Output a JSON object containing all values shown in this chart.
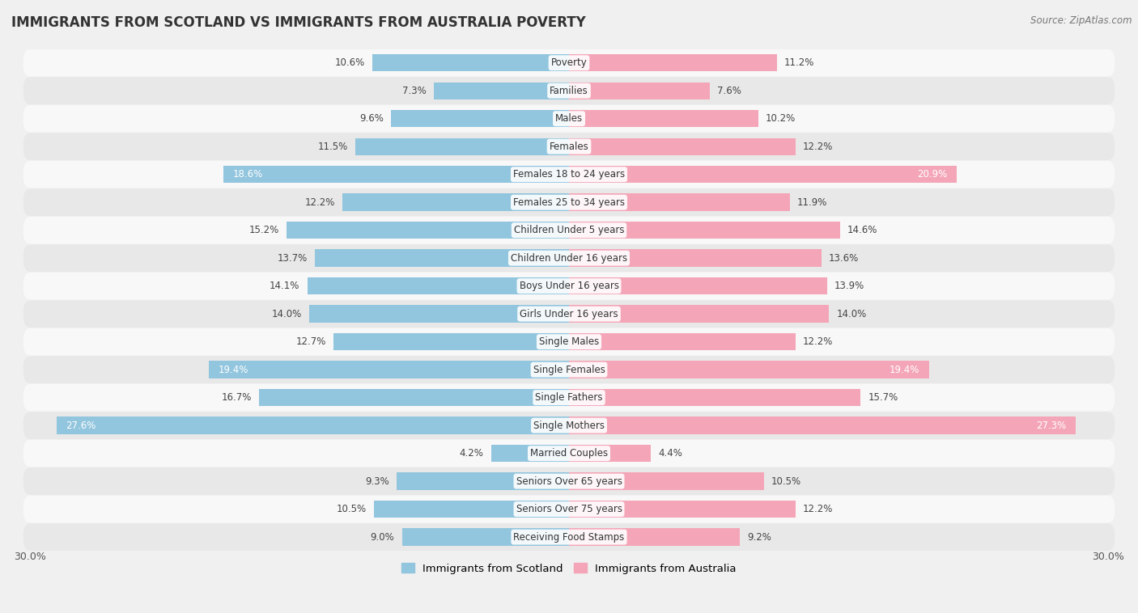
{
  "title": "IMMIGRANTS FROM SCOTLAND VS IMMIGRANTS FROM AUSTRALIA POVERTY",
  "source": "Source: ZipAtlas.com",
  "categories": [
    "Poverty",
    "Families",
    "Males",
    "Females",
    "Females 18 to 24 years",
    "Females 25 to 34 years",
    "Children Under 5 years",
    "Children Under 16 years",
    "Boys Under 16 years",
    "Girls Under 16 years",
    "Single Males",
    "Single Females",
    "Single Fathers",
    "Single Mothers",
    "Married Couples",
    "Seniors Over 65 years",
    "Seniors Over 75 years",
    "Receiving Food Stamps"
  ],
  "scotland_values": [
    10.6,
    7.3,
    9.6,
    11.5,
    18.6,
    12.2,
    15.2,
    13.7,
    14.1,
    14.0,
    12.7,
    19.4,
    16.7,
    27.6,
    4.2,
    9.3,
    10.5,
    9.0
  ],
  "australia_values": [
    11.2,
    7.6,
    10.2,
    12.2,
    20.9,
    11.9,
    14.6,
    13.6,
    13.9,
    14.0,
    12.2,
    19.4,
    15.7,
    27.3,
    4.4,
    10.5,
    12.2,
    9.2
  ],
  "scotland_color": "#92C5DE",
  "australia_color": "#F4A6B8",
  "background_color": "#f0f0f0",
  "row_color_even": "#f8f8f8",
  "row_color_odd": "#e8e8e8",
  "axis_limit": 30.0,
  "legend_scotland": "Immigrants from Scotland",
  "legend_australia": "Immigrants from Australia",
  "white_label_threshold": 17.0
}
